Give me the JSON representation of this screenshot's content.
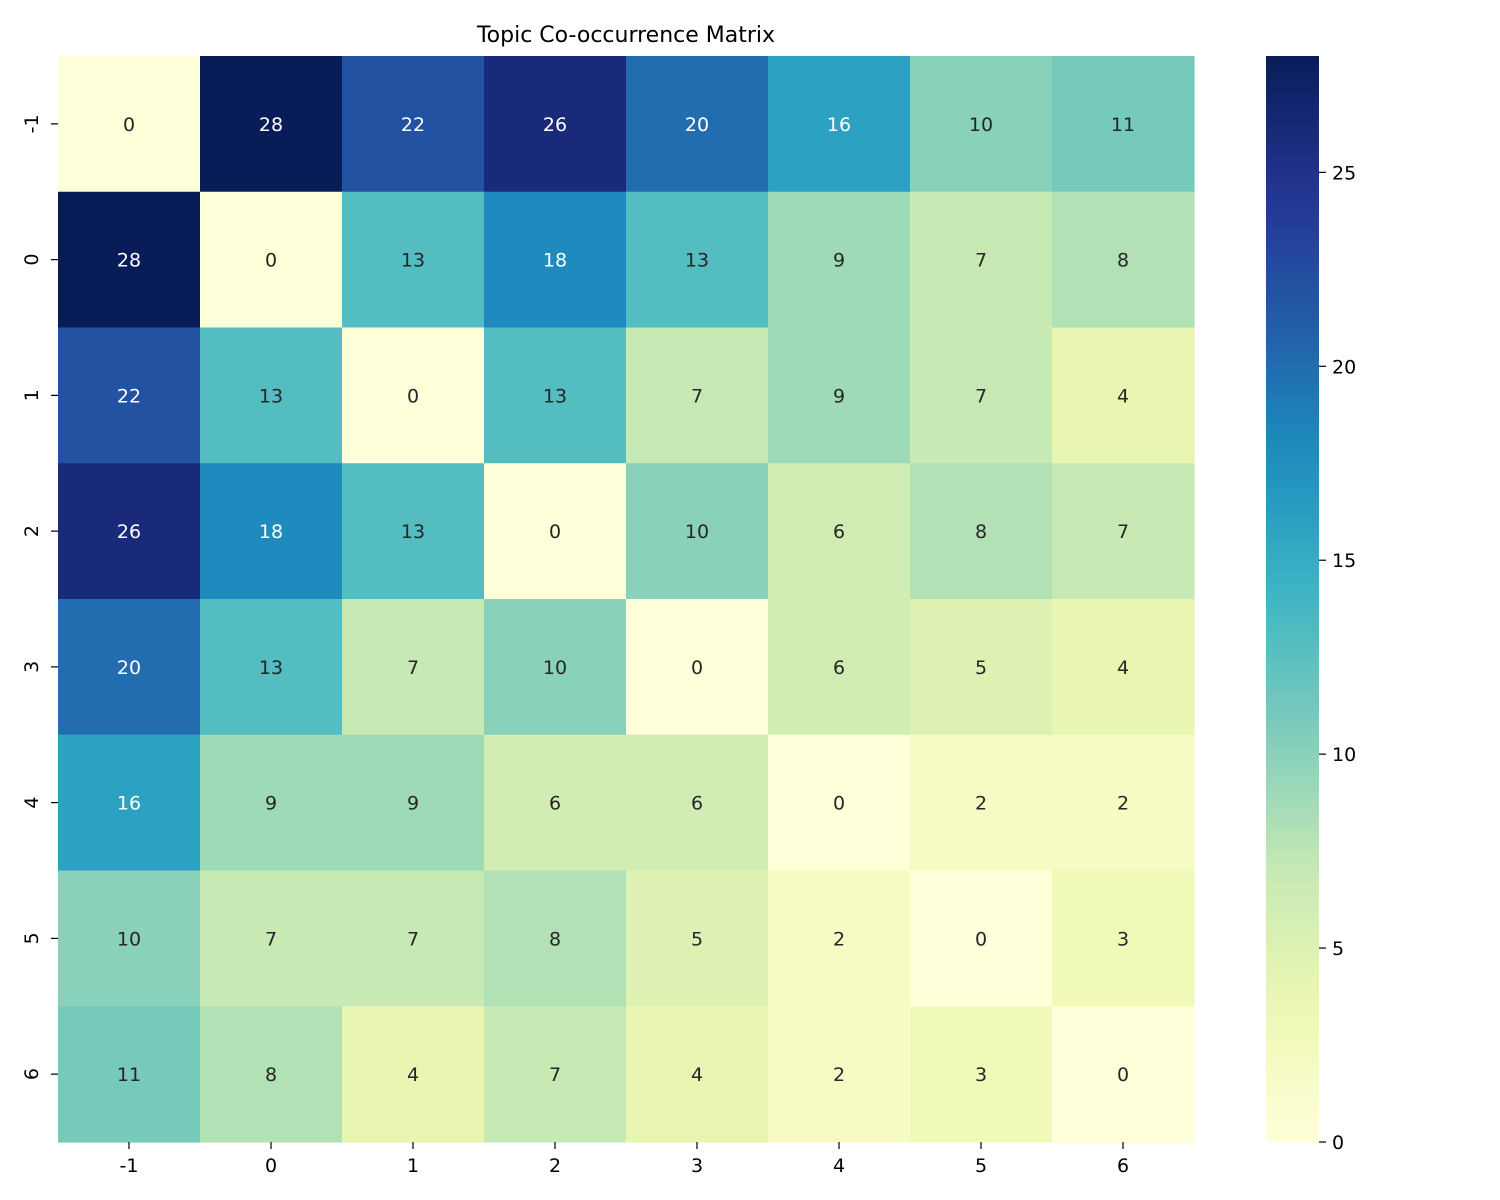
{
  "chart_data": {
    "type": "heatmap",
    "title": "Topic Co-occurrence Matrix",
    "x_categories": [
      "-1",
      "0",
      "1",
      "2",
      "3",
      "4",
      "5",
      "6"
    ],
    "y_categories": [
      "-1",
      "0",
      "1",
      "2",
      "3",
      "4",
      "5",
      "6"
    ],
    "values": [
      [
        0,
        28,
        22,
        26,
        20,
        16,
        10,
        11
      ],
      [
        28,
        0,
        13,
        18,
        13,
        9,
        7,
        8
      ],
      [
        22,
        13,
        0,
        13,
        7,
        9,
        7,
        4
      ],
      [
        26,
        18,
        13,
        0,
        10,
        6,
        8,
        7
      ],
      [
        20,
        13,
        7,
        10,
        0,
        6,
        5,
        4
      ],
      [
        16,
        9,
        9,
        6,
        6,
        0,
        2,
        2
      ],
      [
        10,
        7,
        7,
        8,
        5,
        2,
        0,
        3
      ],
      [
        11,
        8,
        4,
        7,
        4,
        2,
        3,
        0
      ]
    ],
    "colormap": "YlGnBu",
    "color_range": [
      0,
      28
    ],
    "colorbar_ticks": [
      "0",
      "5",
      "10",
      "15",
      "20",
      "25"
    ],
    "annotated": true,
    "xlabel": "",
    "ylabel": ""
  }
}
